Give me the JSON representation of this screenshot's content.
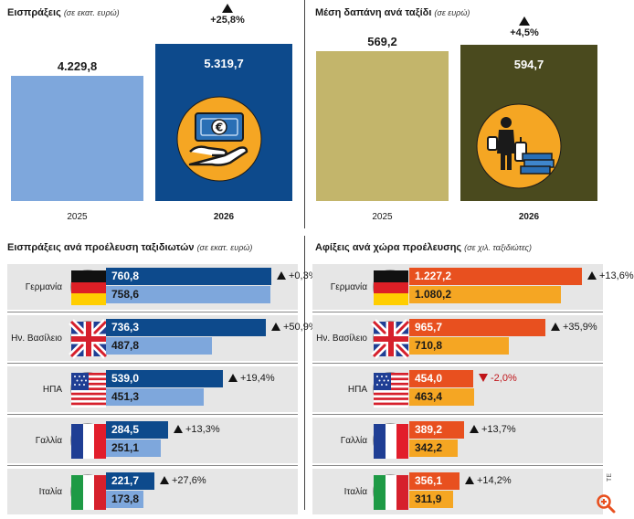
{
  "chart_data": [
    {
      "type": "bar",
      "title": "Εισπράξεις",
      "unit": "(σε εκατ. ευρώ)",
      "categories": [
        "2025",
        "2026"
      ],
      "values": [
        4229.8,
        5319.7
      ],
      "value_labels": [
        "4.229,8",
        "5.319,7"
      ],
      "change_label": "+25,8%",
      "colors": [
        "#7ea7dc",
        "#0d4a8c"
      ],
      "icon": "euro-banknote-hand-icon"
    },
    {
      "type": "bar",
      "title": "Μέση δαπάνη ανά ταξίδι",
      "unit": "(σε ευρώ)",
      "categories": [
        "2025",
        "2026"
      ],
      "values": [
        569.2,
        594.7
      ],
      "value_labels": [
        "569,2",
        "594,7"
      ],
      "change_label": "+4,5%",
      "colors": [
        "#c3b56b",
        "#4a4a1e"
      ],
      "icon": "traveler-luggage-money-icon"
    },
    {
      "type": "bar",
      "orientation": "horizontal",
      "title": "Εισπράξεις ανά προέλευση ταξιδιωτών",
      "unit": "(σε εκατ. ευρώ)",
      "max": 800,
      "colors": {
        "2026": "#0d4a8c",
        "2025": "#7ea7dc"
      },
      "rows": [
        {
          "country": "Γερμανία",
          "flag": "germany-flag-icon",
          "v2026": 760.8,
          "v2025": 758.6,
          "l2026": "760,8",
          "l2025": "758,6",
          "change": "+0,3%",
          "dir": "up"
        },
        {
          "country": "Ην. Βασίλειο",
          "flag": "uk-flag-icon",
          "v2026": 736.3,
          "v2025": 487.8,
          "l2026": "736,3",
          "l2025": "487,8",
          "change": "+50,9%",
          "dir": "up"
        },
        {
          "country": "ΗΠΑ",
          "flag": "usa-flag-icon",
          "v2026": 539.0,
          "v2025": 451.3,
          "l2026": "539,0",
          "l2025": "451,3",
          "change": "+19,4%",
          "dir": "up"
        },
        {
          "country": "Γαλλία",
          "flag": "france-flag-icon",
          "v2026": 284.5,
          "v2025": 251.1,
          "l2026": "284,5",
          "l2025": "251,1",
          "change": "+13,3%",
          "dir": "up"
        },
        {
          "country": "Ιταλία",
          "flag": "italy-flag-icon",
          "v2026": 221.7,
          "v2025": 173.8,
          "l2026": "221,7",
          "l2025": "173,8",
          "change": "+27,6%",
          "dir": "up"
        }
      ]
    },
    {
      "type": "bar",
      "orientation": "horizontal",
      "title": "Αφίξεις ανά χώρα προέλευσης",
      "unit": "(σε χιλ. ταξιδιώτες)",
      "max": 1300,
      "colors": {
        "2026": "#e8501f",
        "2025": "#f5a623"
      },
      "rows": [
        {
          "country": "Γερμανία",
          "flag": "germany-flag-icon",
          "v2026": 1227.2,
          "v2025": 1080.2,
          "l2026": "1.227,2",
          "l2025": "1.080,2",
          "change": "+13,6%",
          "dir": "up"
        },
        {
          "country": "Ην. Βασίλειο",
          "flag": "uk-flag-icon",
          "v2026": 965.7,
          "v2025": 710.8,
          "l2026": "965,7",
          "l2025": "710,8",
          "change": "+35,9%",
          "dir": "up"
        },
        {
          "country": "ΗΠΑ",
          "flag": "usa-flag-icon",
          "v2026": 454.0,
          "v2025": 463.4,
          "l2026": "454,0",
          "l2025": "463,4",
          "change": "-2,0%",
          "dir": "down"
        },
        {
          "country": "Γαλλία",
          "flag": "france-flag-icon",
          "v2026": 389.2,
          "v2025": 342.2,
          "l2026": "389,2",
          "l2025": "342,2",
          "change": "+13,7%",
          "dir": "up"
        },
        {
          "country": "Ιταλία",
          "flag": "italy-flag-icon",
          "v2026": 356.1,
          "v2025": 311.9,
          "l2026": "356,1",
          "l2025": "311,9",
          "change": "+14,2%",
          "dir": "up"
        }
      ]
    }
  ],
  "credit": "ΤΕ",
  "corner_icon": "magnify-logo-icon"
}
